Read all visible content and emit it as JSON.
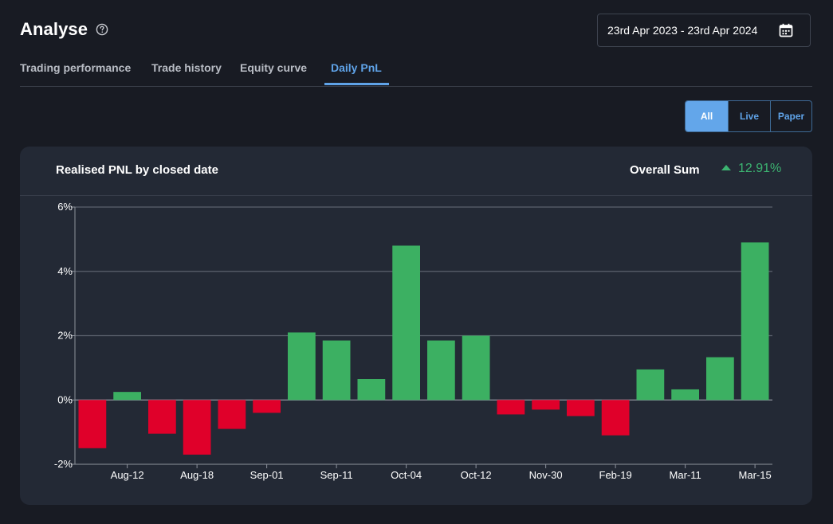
{
  "header": {
    "title": "Analyse",
    "help_icon": "question-circle-icon"
  },
  "date_range": {
    "label": "23rd Apr 2023 - 23rd Apr 2024",
    "icon": "calendar-icon"
  },
  "tabs": [
    {
      "label": "Trading performance",
      "active": false
    },
    {
      "label": "Trade history",
      "active": false
    },
    {
      "label": "Equity curve",
      "active": false
    },
    {
      "label": "Daily PnL",
      "active": true
    }
  ],
  "filter": {
    "options": [
      {
        "label": "All",
        "active": true
      },
      {
        "label": "Live",
        "active": false
      },
      {
        "label": "Paper",
        "active": false
      }
    ]
  },
  "card": {
    "title": "Realised PNL by closed date",
    "overall_label": "Overall Sum",
    "overall_value": "12.91%",
    "overall_direction": "up"
  },
  "colors": {
    "positive": "#3cb062",
    "negative": "#e0002a",
    "accent": "#5fa3e8",
    "sum_positive": "#3cb371"
  },
  "chart_data": {
    "type": "bar",
    "title": "",
    "xlabel": "",
    "ylabel": "",
    "ylim": [
      -2,
      6
    ],
    "y_ticks": [
      "6%",
      "4%",
      "2%",
      "0%",
      "-2%"
    ],
    "y_tick_values": [
      6,
      4,
      2,
      0,
      -2
    ],
    "x_tick_labels": [
      "Aug-12",
      "Aug-18",
      "Sep-01",
      "Sep-11",
      "Oct-04",
      "Oct-12",
      "Nov-30",
      "Feb-19",
      "Mar-11",
      "Mar-15"
    ],
    "grid": true,
    "values": [
      -1.5,
      0.25,
      -1.05,
      -1.7,
      -0.9,
      -0.4,
      2.1,
      1.85,
      0.65,
      4.8,
      1.85,
      2.0,
      -0.45,
      -0.3,
      -0.5,
      -1.1,
      0.95,
      0.33,
      1.33,
      4.9
    ]
  }
}
